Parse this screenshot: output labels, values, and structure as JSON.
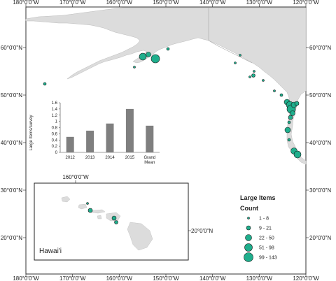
{
  "map": {
    "top_ticks": [
      "180°0'0\"W",
      "170°0'0\"W",
      "160°0'0\"W",
      "150°0'0\"W",
      "140°0'0\"W",
      "130°0'0\"W",
      "120°0'0\"W"
    ],
    "bottom_ticks": [
      "180°0'0\"W",
      "170°0'0\"W",
      "160°0'0\"W",
      "150°0'0\"W",
      "140°0'0\"W",
      "130°0'0\"W",
      "120°0'0\"W"
    ],
    "left_ticks": [
      "60°0'0\"N",
      "50°0'0\"N",
      "40°0'0\"N",
      "30°0'0\"N",
      "20°0'0\"N"
    ],
    "right_ticks": [
      "60°0'0\"N",
      "50°0'0\"N",
      "40°0'0\"N",
      "30°0'0\"N",
      "20°0'0\"N"
    ],
    "colors": {
      "land": "#dcdcdc",
      "water": "#ffffff",
      "marker": "#1fae8c",
      "marker_stroke": "#1a1a1a",
      "bar": "#7f7f7f"
    }
  },
  "inset": {
    "top_tick": "160°0'0\"W",
    "right_tick": "20°0'0\"N",
    "label": "Hawai'i"
  },
  "legend": {
    "title": "Large Items",
    "subtitle": "Count",
    "classes": [
      "1 - 8",
      "9 - 21",
      "22 - 50",
      "51 - 98",
      "99 - 143"
    ]
  },
  "chart_data": {
    "type": "bar",
    "categories": [
      "2012",
      "2013",
      "2014",
      "2015",
      "Grand Mean"
    ],
    "values": [
      0.5,
      0.7,
      0.93,
      1.4,
      0.86
    ],
    "ylabel": "Large Items/survey",
    "ylim": [
      0,
      1.6
    ],
    "yticks": [
      "0",
      "0.2",
      "0.4",
      "0.6",
      "0.8",
      "1",
      "1.2",
      "1.4",
      "1.6"
    ]
  }
}
